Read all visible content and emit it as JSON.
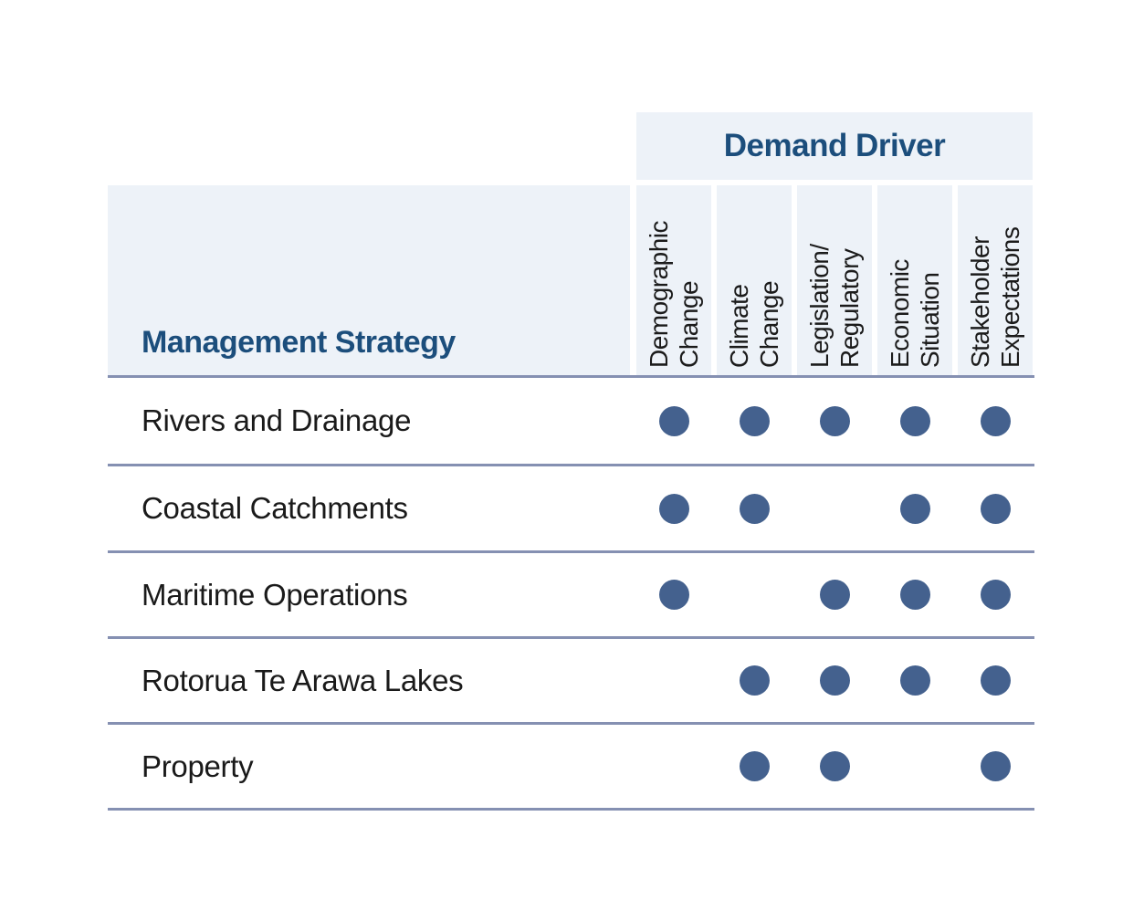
{
  "figure": {
    "group_header": "Demand Driver",
    "corner_header": "Management Strategy",
    "columns": [
      "Demographic\nChange",
      "Climate\nChange",
      "Legislation/\nRegulatory",
      "Economic\nSituation",
      "Stakeholder\nExpectations"
    ],
    "rows": [
      {
        "label": "Rivers and Drainage",
        "dots": [
          1,
          1,
          1,
          1,
          1
        ]
      },
      {
        "label": "Coastal Catchments",
        "dots": [
          1,
          1,
          0,
          1,
          1
        ]
      },
      {
        "label": "Maritime Operations",
        "dots": [
          1,
          0,
          1,
          1,
          1
        ]
      },
      {
        "label": "Rotorua Te Arawa Lakes",
        "dots": [
          0,
          1,
          1,
          1,
          1
        ]
      },
      {
        "label": "Property",
        "dots": [
          0,
          1,
          1,
          0,
          1
        ]
      }
    ]
  },
  "colors": {
    "page_background": "#ffffff",
    "header_background": "#edf2f8",
    "header_text": "#1c4e7c",
    "body_text": "#1a1a1a",
    "dot": "#44618e",
    "divider": "#8590b2"
  },
  "chart_data": {
    "type": "table",
    "title": "Demand Driver",
    "row_axis_label": "Management Strategy",
    "columns": [
      "Demographic Change",
      "Climate Change",
      "Legislation/Regulatory",
      "Economic Situation",
      "Stakeholder Expectations"
    ],
    "rows": [
      "Rivers and Drainage",
      "Coastal Catchments",
      "Maritime Operations",
      "Rotorua Te Arawa Lakes",
      "Property"
    ],
    "matrix": [
      [
        1,
        1,
        1,
        1,
        1
      ],
      [
        1,
        1,
        0,
        1,
        1
      ],
      [
        1,
        0,
        1,
        1,
        1
      ],
      [
        0,
        1,
        1,
        1,
        1
      ],
      [
        0,
        1,
        1,
        0,
        1
      ]
    ],
    "marker": "filled-dot"
  }
}
